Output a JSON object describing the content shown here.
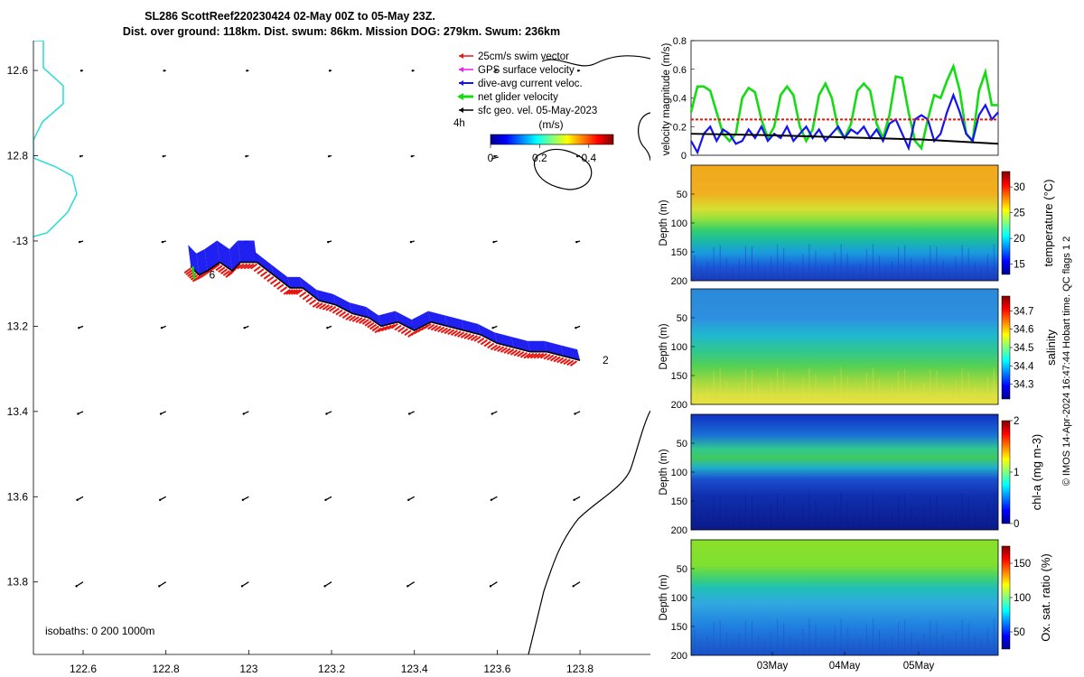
{
  "title": {
    "line1": "SL286 ScottReef220230424 02-May 00Z to 05-May 23Z.",
    "line2": "Dist. over ground: 118km. Dist. swum: 86km. Mission DOG: 279km. Swum: 236km"
  },
  "colors": {
    "swim": "#e8140f",
    "gps": "#e81ee8",
    "dive_avg": "#1414f0",
    "net_glider": "#14dc14",
    "geo": "#000000",
    "isobath_0": "#28dcdc",
    "isobath_200": "#000000"
  },
  "copyright": "© IMOS 14-Apr-2024 16:47:44 Hobart time. QC flags 1  2",
  "chart_data": [
    {
      "type": "map",
      "name": "glider-track-map",
      "legend": [
        {
          "label": "25cm/s swim vector",
          "color": "#e8140f"
        },
        {
          "label": "GPS surface velocity",
          "color": "#e81ee8"
        },
        {
          "label": "dive-avg current veloc.",
          "color": "#1414f0"
        },
        {
          "label": "net glider velocity",
          "color": "#14dc14"
        },
        {
          "label": "sfc geo. vel. 05-May-2023",
          "color": "#000000"
        }
      ],
      "time_step_label": "4h",
      "colorbar": {
        "label": "(m/s)",
        "ticks": [
          "0",
          "0.2",
          "0.4"
        ],
        "range": [
          0,
          0.5
        ]
      },
      "xlim": [
        122.48,
        123.97
      ],
      "ylim": [
        -13.97,
        -12.53
      ],
      "xticks": [
        122.6,
        122.8,
        123,
        123.2,
        123.4,
        123.6,
        123.8
      ],
      "xtick_labels": [
        "122.6",
        "122.8",
        "123",
        "123.2",
        "123.4",
        "123.6",
        "123.8"
      ],
      "yticks": [
        -12.6,
        -12.8,
        -13.0,
        -13.2,
        -13.4,
        -13.6,
        -13.8
      ],
      "ytick_labels": [
        "12.6",
        "12.8",
        "-13",
        "13.2",
        "13.4",
        "13.6",
        "13.8"
      ],
      "track": [
        [
          122.86,
          -13.06
        ],
        [
          122.88,
          -13.08
        ],
        [
          122.9,
          -13.07
        ],
        [
          122.93,
          -13.05
        ],
        [
          122.96,
          -13.07
        ],
        [
          122.98,
          -13.05
        ],
        [
          123.02,
          -13.05
        ],
        [
          123.06,
          -13.08
        ],
        [
          123.1,
          -13.11
        ],
        [
          123.13,
          -13.11
        ],
        [
          123.17,
          -13.14
        ],
        [
          123.21,
          -13.15
        ],
        [
          123.25,
          -13.17
        ],
        [
          123.29,
          -13.18
        ],
        [
          123.32,
          -13.2
        ],
        [
          123.36,
          -13.19
        ],
        [
          123.4,
          -13.21
        ],
        [
          123.44,
          -13.19
        ],
        [
          123.48,
          -13.2
        ],
        [
          123.52,
          -13.21
        ],
        [
          123.56,
          -13.22
        ],
        [
          123.6,
          -13.24
        ],
        [
          123.64,
          -13.25
        ],
        [
          123.68,
          -13.26
        ],
        [
          123.72,
          -13.26
        ],
        [
          123.76,
          -13.27
        ],
        [
          123.8,
          -13.28
        ]
      ],
      "track_labels": [
        {
          "text": "6",
          "lon": 122.9,
          "lat": -13.08
        },
        {
          "text": "2",
          "lon": 123.85,
          "lat": -13.28
        }
      ],
      "isobath_label": "isobaths: 0   200  1000m"
    },
    {
      "type": "line",
      "name": "velocity-magnitude",
      "ylabel": "velocity magnitude (m/s)",
      "ylim": [
        0,
        0.8
      ],
      "yticks": [
        0,
        0.2,
        0.4,
        0.6,
        0.8
      ],
      "ytick_labels": [
        "0",
        "0.2",
        "0.4",
        "0.6",
        "0.8"
      ],
      "xlim": [
        0,
        96
      ],
      "series": [
        {
          "name": "net glider velocity",
          "color": "#14dc14",
          "x": [
            0,
            2,
            4,
            6,
            8,
            10,
            12,
            14,
            16,
            18,
            20,
            22,
            24,
            26,
            28,
            30,
            32,
            34,
            36,
            38,
            40,
            42,
            44,
            46,
            48,
            50,
            52,
            54,
            56,
            58,
            60,
            62,
            64,
            66,
            68,
            70,
            72,
            74,
            76,
            78,
            80,
            82,
            84,
            86,
            88,
            90,
            92,
            94,
            96
          ],
          "values": [
            0.3,
            0.48,
            0.48,
            0.45,
            0.3,
            0.15,
            0.1,
            0.15,
            0.4,
            0.47,
            0.44,
            0.25,
            0.12,
            0.2,
            0.42,
            0.48,
            0.42,
            0.2,
            0.1,
            0.18,
            0.42,
            0.5,
            0.4,
            0.18,
            0.12,
            0.22,
            0.45,
            0.5,
            0.45,
            0.22,
            0.12,
            0.28,
            0.55,
            0.54,
            0.3,
            0.1,
            0.05,
            0.25,
            0.42,
            0.4,
            0.52,
            0.62,
            0.45,
            0.15,
            0.1,
            0.45,
            0.58,
            0.35,
            0.35
          ]
        },
        {
          "name": "dive-avg current veloc.",
          "color": "#1414f0",
          "x": [
            0,
            2,
            4,
            6,
            8,
            10,
            12,
            14,
            16,
            18,
            20,
            22,
            24,
            26,
            28,
            30,
            32,
            34,
            36,
            38,
            40,
            42,
            44,
            46,
            48,
            50,
            52,
            54,
            56,
            58,
            60,
            62,
            64,
            66,
            68,
            70,
            72,
            74,
            76,
            78,
            80,
            82,
            84,
            86,
            88,
            90,
            92,
            94,
            96
          ],
          "values": [
            0.1,
            0.02,
            0.15,
            0.2,
            0.1,
            0.18,
            0.15,
            0.08,
            0.1,
            0.18,
            0.12,
            0.2,
            0.1,
            0.15,
            0.12,
            0.2,
            0.1,
            0.15,
            0.2,
            0.12,
            0.18,
            0.1,
            0.15,
            0.2,
            0.12,
            0.18,
            0.15,
            0.2,
            0.12,
            0.18,
            0.1,
            0.22,
            0.25,
            0.15,
            0.05,
            0.25,
            0.28,
            0.25,
            0.1,
            0.15,
            0.3,
            0.42,
            0.3,
            0.15,
            0.1,
            0.28,
            0.35,
            0.25,
            0.3
          ]
        },
        {
          "name": "25cm/s swim vector",
          "color": "#e8140f",
          "x": [
            0,
            96
          ],
          "values": [
            0.25,
            0.25
          ]
        },
        {
          "name": "sfc geo. vel.",
          "color": "#000000",
          "x": [
            0,
            24,
            48,
            72,
            96
          ],
          "values": [
            0.15,
            0.14,
            0.125,
            0.11,
            0.08
          ]
        }
      ]
    },
    {
      "type": "heatmap",
      "name": "temperature-section",
      "ylabel": "Depth (m)",
      "yticks": [
        50,
        100,
        150,
        200
      ],
      "ylim": [
        0,
        200
      ],
      "colorbar_label": "temperature (°C)",
      "colorbar_ticks": [
        "15",
        "20",
        "25",
        "30"
      ],
      "colorbar_range": [
        13,
        33
      ]
    },
    {
      "type": "heatmap",
      "name": "salinity-section",
      "ylabel": "Depth (m)",
      "yticks": [
        50,
        100,
        150,
        200
      ],
      "ylim": [
        0,
        200
      ],
      "colorbar_label": "salinity",
      "colorbar_ticks": [
        "34.3",
        "34.4",
        "34.5",
        "34.6",
        "34.7"
      ],
      "colorbar_range": [
        34.22,
        34.78
      ]
    },
    {
      "type": "heatmap",
      "name": "chla-section",
      "ylabel": "Depth (m)",
      "yticks": [
        50,
        100,
        150,
        200
      ],
      "ylim": [
        0,
        200
      ],
      "colorbar_label": "chl-a (mg m-3)",
      "colorbar_ticks": [
        "0",
        "1",
        "2"
      ],
      "colorbar_range": [
        0,
        2
      ]
    },
    {
      "type": "heatmap",
      "name": "oxygen-section",
      "ylabel": "Depth (m)",
      "yticks": [
        50,
        100,
        150,
        200
      ],
      "ylim": [
        0,
        200
      ],
      "colorbar_label": "Ox. sat. ratio (%)",
      "colorbar_ticks": [
        "50",
        "100",
        "150"
      ],
      "colorbar_range": [
        25,
        175
      ],
      "xtick_labels": [
        "03May",
        "04May",
        "05May"
      ]
    }
  ]
}
